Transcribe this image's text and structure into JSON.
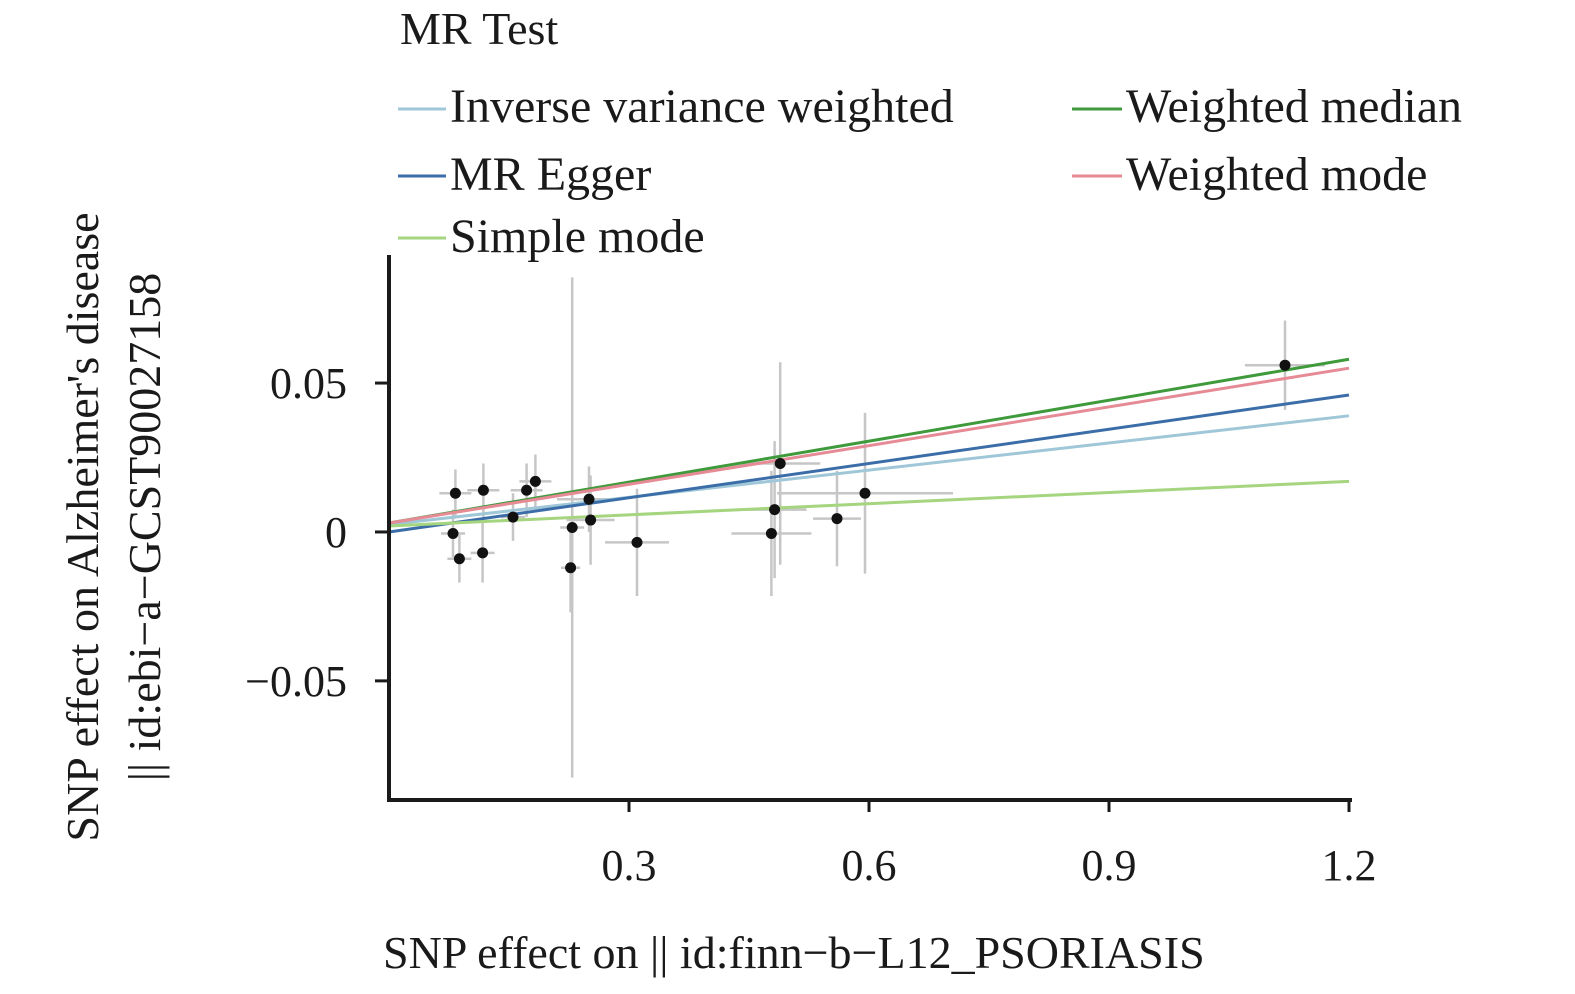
{
  "chart_data": {
    "type": "scatter",
    "xlabel": "SNP effect on  || id:finn−b−L12_PSORIASIS",
    "ylabel_line1": "SNP effect on Alzheimer's disease",
    "ylabel_line2": "|| id:ebi−a−GCST90027158",
    "xlim": [
      0.0,
      1.2
    ],
    "ylim": [
      -0.09,
      0.093
    ],
    "x_ticks": [
      {
        "value": 0.3,
        "label": "0.3"
      },
      {
        "value": 0.6,
        "label": "0.6"
      },
      {
        "value": 0.9,
        "label": "0.9"
      },
      {
        "value": 1.2,
        "label": "1.2"
      }
    ],
    "y_ticks": [
      {
        "value": 0.05,
        "label": "0.05"
      },
      {
        "value": 0.0,
        "label": "0"
      },
      {
        "value": -0.05,
        "label": "−0.05"
      }
    ],
    "legend": {
      "title": "MR Test",
      "placement": "top",
      "entries": [
        {
          "name": "Inverse variance weighted",
          "color": "#9fc7d8"
        },
        {
          "name": "Weighted median",
          "color": "#3f9a3c"
        },
        {
          "name": "MR Egger",
          "color": "#3b6ea8"
        },
        {
          "name": "Weighted mode",
          "color": "#e68a96"
        },
        {
          "name": "Simple mode",
          "color": "#a5d57f"
        }
      ]
    },
    "series": [
      {
        "name": "Inverse variance weighted",
        "color": "#9fc7d8",
        "x": [
          0.0,
          1.2
        ],
        "y": [
          0.0025,
          0.039
        ]
      },
      {
        "name": "MR Egger",
        "color": "#3b6ea8",
        "x": [
          0.0,
          1.2
        ],
        "y": [
          0.0,
          0.046
        ]
      },
      {
        "name": "Weighted median",
        "color": "#3f9a3c",
        "x": [
          0.0,
          1.2
        ],
        "y": [
          0.003,
          0.058
        ]
      },
      {
        "name": "Weighted mode",
        "color": "#e68a96",
        "x": [
          0.0,
          1.2
        ],
        "y": [
          0.003,
          0.055
        ]
      },
      {
        "name": "Simple mode",
        "color": "#a5d57f",
        "x": [
          0.0,
          1.2
        ],
        "y": [
          0.002,
          0.017
        ]
      }
    ],
    "points": [
      {
        "x": 0.083,
        "y": 0.013,
        "x_err": 0.02,
        "y_err": 0.008
      },
      {
        "x": 0.08,
        "y": -0.0005,
        "x_err": 0.015,
        "y_err": 0.008
      },
      {
        "x": 0.088,
        "y": -0.009,
        "x_err": 0.015,
        "y_err": 0.008
      },
      {
        "x": 0.118,
        "y": 0.014,
        "x_err": 0.02,
        "y_err": 0.009
      },
      {
        "x": 0.117,
        "y": -0.007,
        "x_err": 0.015,
        "y_err": 0.01
      },
      {
        "x": 0.155,
        "y": 0.005,
        "x_err": 0.015,
        "y_err": 0.008
      },
      {
        "x": 0.172,
        "y": 0.014,
        "x_err": 0.02,
        "y_err": 0.009
      },
      {
        "x": 0.183,
        "y": 0.017,
        "x_err": 0.02,
        "y_err": 0.009
      },
      {
        "x": 0.229,
        "y": 0.0015,
        "x_err": 0.015,
        "y_err": 0.084
      },
      {
        "x": 0.227,
        "y": -0.012,
        "x_err": 0.012,
        "y_err": 0.015
      },
      {
        "x": 0.25,
        "y": 0.011,
        "x_err": 0.04,
        "y_err": 0.011
      },
      {
        "x": 0.252,
        "y": 0.004,
        "x_err": 0.03,
        "y_err": 0.015
      },
      {
        "x": 0.31,
        "y": -0.0035,
        "x_err": 0.04,
        "y_err": 0.018
      },
      {
        "x": 0.489,
        "y": 0.023,
        "x_err": 0.05,
        "y_err": 0.034
      },
      {
        "x": 0.482,
        "y": 0.0075,
        "x_err": 0.04,
        "y_err": 0.023
      },
      {
        "x": 0.478,
        "y": -0.0005,
        "x_err": 0.05,
        "y_err": 0.021
      },
      {
        "x": 0.56,
        "y": 0.0045,
        "x_err": 0.03,
        "y_err": 0.016
      },
      {
        "x": 0.595,
        "y": 0.013,
        "x_err": 0.11,
        "y_err": 0.027
      },
      {
        "x": 1.12,
        "y": 0.056,
        "x_err": 0.05,
        "y_err": 0.015
      }
    ]
  }
}
